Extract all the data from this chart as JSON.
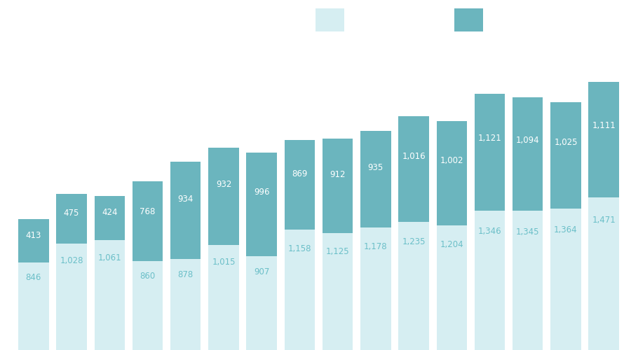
{
  "bottom_values": [
    846,
    1028,
    1061,
    860,
    878,
    1015,
    907,
    1158,
    1125,
    1178,
    1235,
    1204,
    1346,
    1345,
    1364,
    1471
  ],
  "top_values": [
    413,
    475,
    424,
    768,
    934,
    932,
    996,
    869,
    912,
    935,
    1016,
    1002,
    1121,
    1094,
    1025,
    1111
  ],
  "bottom_color": "#d6eef2",
  "top_color": "#6bb5be",
  "bottom_text_color": "#6bbfc8",
  "top_text_color": "#ffffff",
  "background_color": "#ffffff",
  "bar_width": 0.8,
  "figsize": [
    9.0,
    5.0
  ],
  "dpi": 100,
  "ylim_max_factor": 1.15,
  "font_size": 8.5
}
